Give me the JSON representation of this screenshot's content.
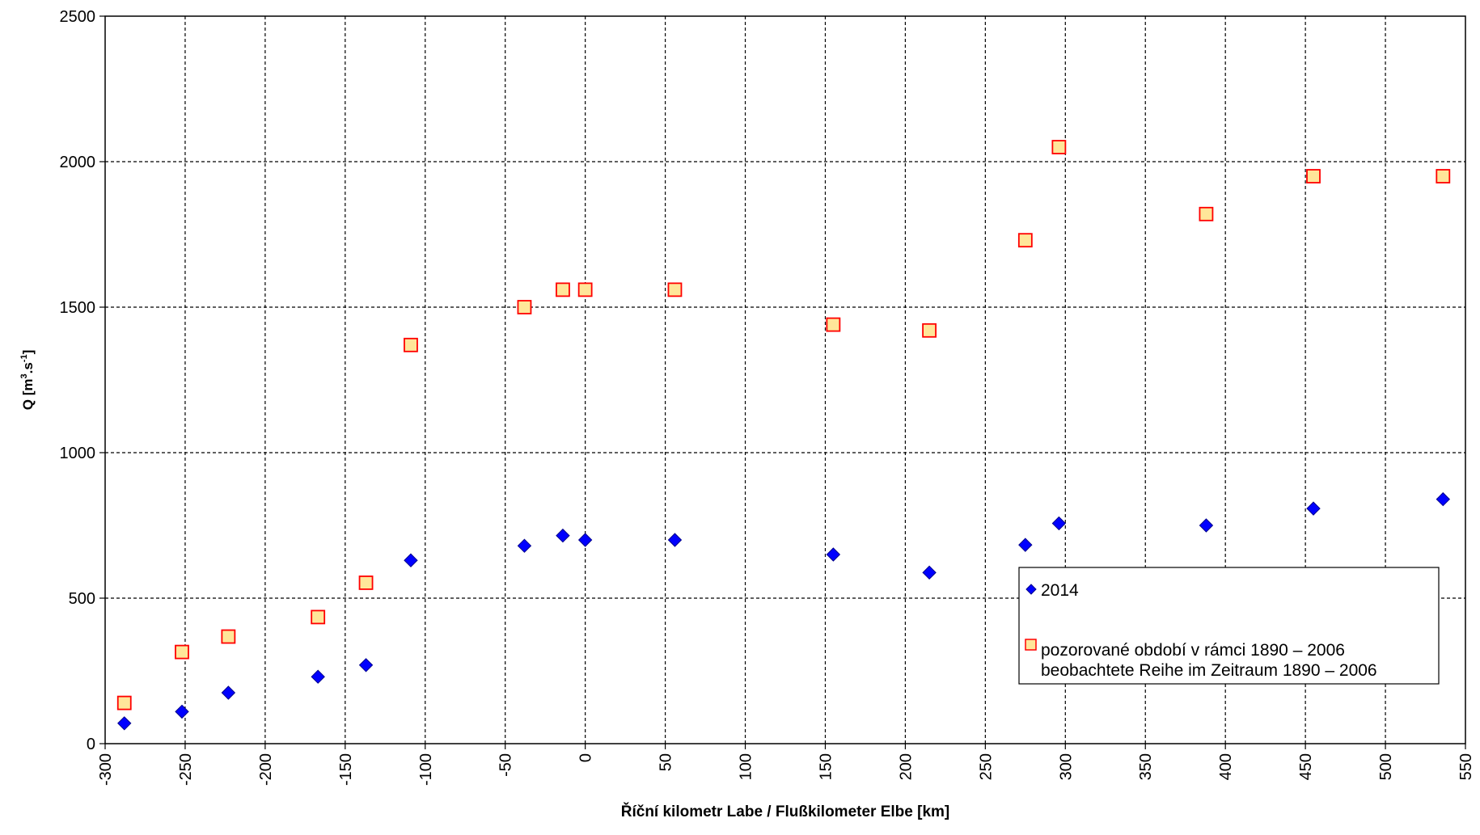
{
  "chart_data": {
    "type": "scatter",
    "xlabel": "Říční kilometr Labe / Flußkilometer  Elbe  [km]",
    "ylabel": "Q [m3.s-1]",
    "ylabel_parts": {
      "q": "Q [m",
      "sup1": "3",
      "mid": ".s",
      "sup2": "-1",
      "end": "]"
    },
    "xlim": [
      -300,
      550
    ],
    "ylim": [
      0,
      2500
    ],
    "x_ticks": [
      -300,
      -250,
      -200,
      -150,
      -100,
      -50,
      0,
      50,
      100,
      150,
      200,
      250,
      300,
      350,
      400,
      450,
      500,
      550
    ],
    "y_ticks": [
      0,
      500,
      1000,
      1500,
      2000,
      2500
    ],
    "grid": true,
    "legend_position": "bottom-right",
    "series": [
      {
        "name": "2014",
        "marker": "diamond",
        "color": "#0000ff",
        "points": [
          [
            -288,
            70
          ],
          [
            -252,
            110
          ],
          [
            -223,
            175
          ],
          [
            -167,
            230
          ],
          [
            -137,
            270
          ],
          [
            -109,
            630
          ],
          [
            -38,
            680
          ],
          [
            -14,
            715
          ],
          [
            0,
            700
          ],
          [
            56,
            700
          ],
          [
            155,
            650
          ],
          [
            215,
            588
          ],
          [
            275,
            683
          ],
          [
            296,
            757
          ],
          [
            388,
            750
          ],
          [
            455,
            808
          ],
          [
            536,
            840
          ]
        ]
      },
      {
        "name": "pozorované období v rámci 1890 – 2006",
        "name_line2": "beobachtete Reihe im Zeitraum 1890 – 2006",
        "marker": "square",
        "color": "#ffe699",
        "edge_color": "#ff0000",
        "points": [
          [
            -288,
            140
          ],
          [
            -252,
            315
          ],
          [
            -223,
            368
          ],
          [
            -167,
            435
          ],
          [
            -137,
            553
          ],
          [
            -109,
            1370
          ],
          [
            -38,
            1500
          ],
          [
            -14,
            1560
          ],
          [
            0,
            1560
          ],
          [
            56,
            1560
          ],
          [
            155,
            1440
          ],
          [
            215,
            1420
          ],
          [
            275,
            1730
          ],
          [
            296,
            2050
          ],
          [
            388,
            1820
          ],
          [
            455,
            1950
          ],
          [
            536,
            1950
          ]
        ]
      }
    ]
  }
}
